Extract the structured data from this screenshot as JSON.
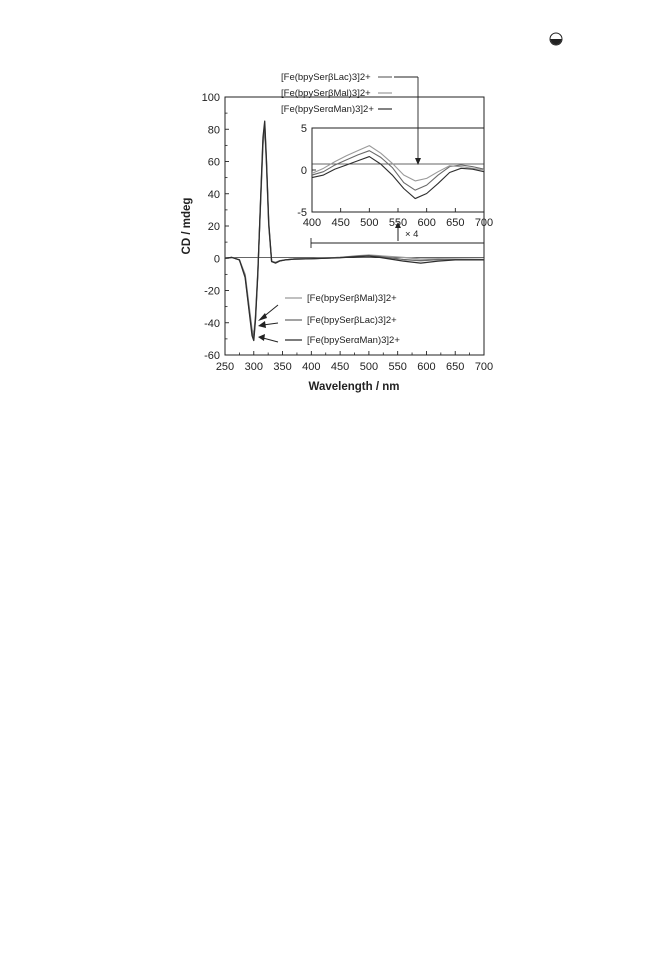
{
  "chart_data": [
    {
      "type": "line",
      "title": "",
      "xlabel": "Wavelength / nm",
      "ylabel": "CD / mdeg",
      "xlim": [
        250,
        700
      ],
      "ylim": [
        -60,
        100
      ],
      "x_ticks": [
        "250",
        "300",
        "350",
        "400",
        "450",
        "500",
        "550",
        "600",
        "650",
        "700"
      ],
      "y_ticks": [
        "-60",
        "-40",
        "-20",
        "0",
        "20",
        "40",
        "60",
        "80",
        "100"
      ],
      "grid": false,
      "legend_position": "lower-center",
      "series": [
        {
          "name": "[Fe(bpySerβMal)3]2+",
          "color": "#9a9a9a",
          "x": [
            250,
            262,
            275,
            285,
            292,
            297,
            300,
            303,
            307,
            312,
            316,
            319,
            322,
            326,
            331,
            338,
            345,
            355,
            370,
            400,
            450,
            480,
            500,
            520,
            560,
            590,
            620,
            650,
            700
          ],
          "y": [
            0,
            0.5,
            -1,
            -10,
            -30,
            -44,
            -47,
            -35,
            -8,
            35,
            70,
            80,
            58,
            20,
            -2,
            -2.5,
            -1.5,
            -1,
            -0.5,
            -0.3,
            0.5,
            1.5,
            2.0,
            1.5,
            0.5,
            -0.5,
            -0.3,
            -0.5,
            -0.7
          ]
        },
        {
          "name": "[Fe(bpySerβLac)3]2+",
          "color": "#6a6a6a",
          "x": [
            250,
            262,
            275,
            285,
            292,
            297,
            300,
            303,
            307,
            312,
            316,
            319,
            322,
            326,
            331,
            338,
            345,
            355,
            370,
            400,
            450,
            480,
            500,
            520,
            560,
            590,
            620,
            650,
            700
          ],
          "y": [
            0,
            0.5,
            -1,
            -11,
            -32,
            -46,
            -49,
            -37,
            -9,
            37,
            73,
            83,
            60,
            21,
            -2,
            -2.8,
            -1.6,
            -1,
            -0.5,
            -0.3,
            0.5,
            1.3,
            1.7,
            1.0,
            -0.8,
            -1.5,
            -0.8,
            -0.8,
            -0.9
          ]
        },
        {
          "name": "[Fe(bpySerαMan)3]2+",
          "color": "#2e2e2e",
          "x": [
            250,
            262,
            275,
            285,
            292,
            297,
            300,
            303,
            307,
            312,
            316,
            319,
            322,
            326,
            331,
            338,
            345,
            355,
            370,
            400,
            450,
            480,
            500,
            520,
            560,
            590,
            620,
            650,
            700
          ],
          "y": [
            0,
            0.5,
            -1,
            -12,
            -33,
            -48,
            -51,
            -38,
            -10,
            38,
            75,
            85,
            61,
            22,
            -2,
            -3.0,
            -1.7,
            -1,
            -0.5,
            -0.3,
            0.3,
            1.0,
            1.3,
            0.5,
            -1.8,
            -3.0,
            -1.8,
            -1.0,
            -1.0
          ]
        }
      ]
    },
    {
      "type": "line",
      "title": "",
      "xlabel": "",
      "ylabel": "",
      "xlim": [
        400,
        700
      ],
      "ylim": [
        -5,
        5
      ],
      "x_ticks": [
        "400",
        "450",
        "500",
        "550",
        "600",
        "650",
        "700"
      ],
      "y_ticks": [
        "-5",
        "0",
        "5"
      ],
      "grid": false,
      "legend_position": "top-left",
      "series": [
        {
          "name": "[Fe(bpySerβLac)3]2+",
          "color": "#6a6a6a",
          "x": [
            400,
            420,
            440,
            460,
            480,
            500,
            520,
            540,
            560,
            580,
            600,
            620,
            640,
            660,
            680,
            700
          ],
          "y": [
            -0.6,
            -0.2,
            0.6,
            1.2,
            1.8,
            2.3,
            1.5,
            0.3,
            -1.5,
            -2.4,
            -1.8,
            -0.6,
            0.4,
            0.6,
            0.4,
            0.1
          ]
        },
        {
          "name": "[Fe(bpySerβMal)3]2+",
          "color": "#9a9a9a",
          "x": [
            400,
            420,
            440,
            460,
            480,
            500,
            520,
            540,
            560,
            580,
            600,
            620,
            640,
            660,
            680,
            700
          ],
          "y": [
            -0.4,
            0.2,
            1.0,
            1.7,
            2.3,
            2.9,
            2.0,
            0.8,
            -0.6,
            -1.3,
            -1.0,
            -0.2,
            0.5,
            0.4,
            0.2,
            0.0
          ]
        },
        {
          "name": "[Fe(bpySerαMan)3]2+",
          "color": "#2e2e2e",
          "x": [
            400,
            420,
            440,
            460,
            480,
            500,
            520,
            540,
            560,
            580,
            600,
            620,
            640,
            660,
            680,
            700
          ],
          "y": [
            -0.9,
            -0.6,
            0.1,
            0.6,
            1.1,
            1.6,
            0.7,
            -0.6,
            -2.2,
            -3.4,
            -2.8,
            -1.6,
            -0.3,
            0.2,
            0.1,
            -0.2
          ]
        }
      ],
      "annotation": "× 4"
    }
  ]
}
